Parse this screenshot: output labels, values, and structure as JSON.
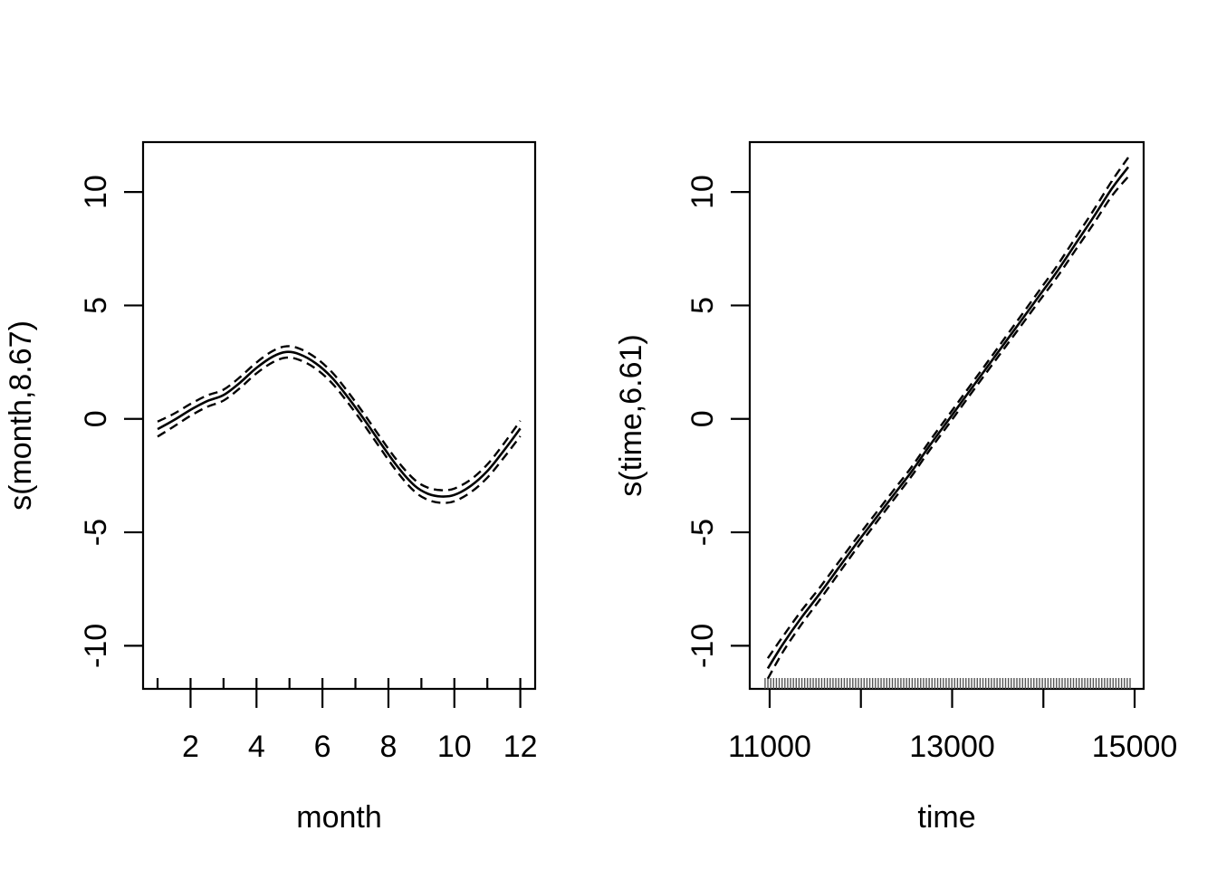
{
  "figure": {
    "background": "#ffffff",
    "axis_color": "#000000"
  },
  "chart_data": [
    {
      "type": "line",
      "panel": "left",
      "title": "",
      "xlabel": "month",
      "ylabel": "s(month,8.67)",
      "xlim": [
        0.56,
        12.45
      ],
      "ylim": [
        -11.9,
        12.2
      ],
      "grid": false,
      "legend_position": "none",
      "x_ticks": [
        2,
        4,
        6,
        8,
        10,
        12
      ],
      "x_tick_labels": [
        "2",
        "4",
        "6",
        "8",
        "10",
        "12"
      ],
      "y_ticks": [
        -10,
        -5,
        0,
        5,
        10
      ],
      "y_tick_labels": [
        "-10",
        "-5",
        "0",
        "5",
        "10"
      ],
      "line_color": "#000000",
      "series": [
        {
          "name": "smooth-fit",
          "style": "solid",
          "x": [
            1,
            1.5,
            2,
            2.5,
            3,
            3.5,
            4,
            4.5,
            4.9,
            5.3,
            5.8,
            6.3,
            6.8,
            7.3,
            7.8,
            8.3,
            8.8,
            9.2,
            9.6,
            10.0,
            10.5,
            11.0,
            11.5,
            12
          ],
          "y": [
            -0.45,
            -0.05,
            0.4,
            0.78,
            1.05,
            1.6,
            2.25,
            2.75,
            2.95,
            2.85,
            2.45,
            1.8,
            0.9,
            -0.1,
            -1.15,
            -2.15,
            -2.95,
            -3.3,
            -3.42,
            -3.35,
            -2.95,
            -2.3,
            -1.4,
            -0.42
          ]
        },
        {
          "name": "ci-upper",
          "style": "dashed",
          "derived": "smooth-fit + ci_halfwidth"
        },
        {
          "name": "ci-lower",
          "style": "dashed",
          "derived": "smooth-fit - ci_halfwidth"
        }
      ],
      "ci_halfwidth": [
        0.33,
        0.28,
        0.26,
        0.25,
        0.24,
        0.24,
        0.24,
        0.25,
        0.25,
        0.25,
        0.24,
        0.24,
        0.24,
        0.24,
        0.24,
        0.25,
        0.26,
        0.27,
        0.28,
        0.28,
        0.28,
        0.29,
        0.31,
        0.34
      ],
      "rug": {
        "points": [
          1,
          2,
          3,
          4,
          5,
          6,
          7,
          8,
          9,
          10,
          11,
          12
        ],
        "color": "#000000",
        "length": 12
      }
    },
    {
      "type": "line",
      "panel": "right",
      "title": "",
      "xlabel": "time",
      "ylabel": "s(time,6.61)",
      "xlim": [
        10782,
        15099
      ],
      "ylim": [
        -11.9,
        12.2
      ],
      "grid": false,
      "legend_position": "none",
      "x_ticks": [
        11000,
        12000,
        13000,
        14000,
        15000
      ],
      "x_tick_labels": [
        "11000",
        "",
        "13000",
        "",
        "15000"
      ],
      "y_ticks": [
        -10,
        -5,
        0,
        5,
        10
      ],
      "y_tick_labels": [
        "-10",
        "-5",
        "0",
        "5",
        "10"
      ],
      "line_color": "#000000",
      "series": [
        {
          "name": "smooth-fit",
          "style": "solid",
          "x": [
            10980,
            11150,
            11350,
            11550,
            11750,
            11950,
            12150,
            12350,
            12550,
            12750,
            12950,
            13150,
            13350,
            13550,
            13750,
            13950,
            14150,
            14350,
            14550,
            14750,
            14930
          ],
          "y": [
            -11.0,
            -9.9,
            -8.75,
            -7.7,
            -6.6,
            -5.5,
            -4.45,
            -3.4,
            -2.35,
            -1.2,
            -0.1,
            1.0,
            2.1,
            3.2,
            4.3,
            5.4,
            6.5,
            7.7,
            8.9,
            10.15,
            11.1
          ]
        },
        {
          "name": "ci-upper",
          "style": "dashed",
          "derived": "smooth-fit + ci_halfwidth"
        },
        {
          "name": "ci-lower",
          "style": "dashed",
          "derived": "smooth-fit - ci_halfwidth"
        }
      ],
      "ci_halfwidth": [
        0.45,
        0.34,
        0.3,
        0.27,
        0.25,
        0.23,
        0.22,
        0.21,
        0.2,
        0.2,
        0.2,
        0.2,
        0.2,
        0.21,
        0.22,
        0.23,
        0.25,
        0.27,
        0.3,
        0.33,
        0.42
      ],
      "rug": {
        "from": 10950,
        "to": 14950,
        "count": 130,
        "color": "#555555",
        "length": 12
      }
    }
  ]
}
